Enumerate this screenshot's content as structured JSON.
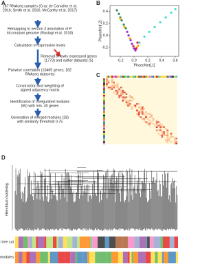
{
  "panels": {
    "a": "A",
    "b": "B",
    "c": "C",
    "d": "D"
  },
  "flow": {
    "steps": [
      [
        "187 RNAseq samples (Cruz de Carvalho et al.",
        "2016; Smith et al. 2016; McCarthy et al. 2017)"
      ],
      [
        "Remapping to version 3 annotation of P.",
        "tricornutum genome (Rastogi et al. 2018)"
      ],
      [
        "Calculation of expression levels"
      ],
      [
        "Removal of lowly expressed genes",
        "(1773) and outlier datasets (5)"
      ],
      [
        "Pairwise correlation (10405 genes; 182",
        "RNAseq datasets)"
      ],
      [
        "Construction and weighting of",
        "signed adjacency matrix"
      ],
      [
        "Identification of coregulated modules",
        "(50) with min. 40 genes"
      ],
      [
        "Generation of merged modules (28)",
        "with similarity threshold 0.75"
      ]
    ]
  },
  "chart_data": {
    "type": "scatter",
    "xlabel": "PhaeoNet[,1]",
    "ylabel": "PhaeoNet[,2]",
    "xlim": [
      -0.35,
      0.65
    ],
    "ylim": [
      -0.35,
      0.5
    ],
    "xticks": [
      {
        "value": -0.2,
        "label": "-0.2"
      },
      {
        "value": 0,
        "label": "0.0"
      },
      {
        "value": 0.2,
        "label": "0.2"
      },
      {
        "value": 0.4,
        "label": "0.4"
      },
      {
        "value": 0.6,
        "label": "0.6"
      }
    ],
    "yticks": [
      {
        "value": -0.2,
        "label": "-0.2"
      },
      {
        "value": 0,
        "label": "0.0"
      },
      {
        "value": 0.2,
        "label": "0.2"
      },
      {
        "value": 0.4,
        "label": "0.4"
      }
    ],
    "series": [
      {
        "color": "#2e8b57",
        "x": [
          -0.25,
          -0.22,
          -0.2,
          -0.18,
          -0.15,
          -0.12
        ],
        "y": [
          0.42,
          0.36,
          0.3,
          0.25,
          0.18,
          0.12
        ]
      },
      {
        "color": "#8b2be2",
        "x": [
          -0.1,
          -0.08,
          -0.05,
          -0.03,
          0.0,
          0.02
        ],
        "y": [
          0.06,
          0.0,
          -0.08,
          -0.14,
          -0.22,
          -0.25
        ]
      },
      {
        "color": "#ffa500",
        "x": [
          -0.2,
          -0.14,
          -0.06,
          0.04,
          0.06
        ],
        "y": [
          0.28,
          0.14,
          -0.05,
          -0.2,
          -0.17
        ]
      },
      {
        "color": "#40e0d0",
        "x": [
          0.08,
          0.15,
          0.22,
          0.3,
          0.38,
          0.46,
          0.54,
          0.6
        ],
        "y": [
          -0.12,
          -0.02,
          0.06,
          0.14,
          0.22,
          0.3,
          0.38,
          0.44
        ]
      },
      {
        "color": "#dc143c",
        "x": [
          -0.01,
          0.03,
          0.05
        ],
        "y": [
          -0.18,
          -0.22,
          -0.12
        ]
      }
    ]
  },
  "d": {
    "ylabel": "Hierchical clustering",
    "rows": [
      "Dynamic tree cut",
      "Merged modules"
    ]
  }
}
